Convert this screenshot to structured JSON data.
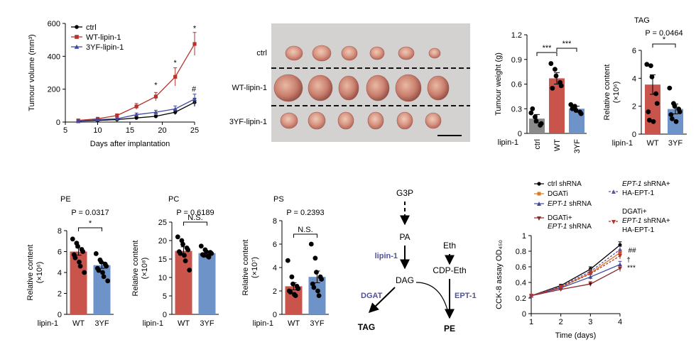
{
  "colors": {
    "ctrl": "#000000",
    "wt": "#b5332c",
    "yf": "#3e4aa0",
    "wt_bar": "#c8544c",
    "yf_bar": "#6d93c8",
    "lipin_text": "#5050a0",
    "orange": "#e07a1f",
    "maroon": "#8b2a2a",
    "purple": "#6a4fa0"
  },
  "chart_data": [
    {
      "id": "tumour-volume",
      "type": "line",
      "xlabel": "Days after implantation",
      "ylabel": "Tumour volume (mm³)",
      "xlim": [
        5,
        25
      ],
      "ylim": [
        0,
        600
      ],
      "xticks": [
        5,
        10,
        15,
        20,
        25
      ],
      "yticks": [
        0,
        200,
        400,
        600
      ],
      "x": [
        7,
        10,
        13,
        16,
        19,
        22,
        25
      ],
      "series": [
        {
          "name": "ctrl",
          "color": "#000000",
          "marker": "circle",
          "values": [
            5,
            10,
            15,
            25,
            35,
            60,
            120
          ],
          "err": [
            2,
            3,
            4,
            6,
            8,
            15,
            25
          ]
        },
        {
          "name": "WT-lipin-1",
          "color": "#b5332c",
          "marker": "square",
          "values": [
            10,
            20,
            40,
            95,
            155,
            275,
            475
          ],
          "err": [
            3,
            5,
            10,
            18,
            25,
            55,
            70
          ]
        },
        {
          "name": "3YF-lipin-1",
          "color": "#3e4aa0",
          "marker": "triangle",
          "values": [
            5,
            15,
            20,
            45,
            60,
            80,
            140
          ],
          "err": [
            2,
            4,
            6,
            10,
            12,
            18,
            30
          ]
        }
      ],
      "annotations": [
        {
          "x": 19,
          "label": "*"
        },
        {
          "x": 22,
          "label": "*"
        },
        {
          "x": 25,
          "label": "*"
        },
        {
          "x": 25,
          "label": "#"
        }
      ]
    },
    {
      "id": "tumour-weight",
      "type": "bar",
      "ylabel": "Tumour weight (g)",
      "group_label": "lipin-1",
      "categories": [
        "ctrl",
        "WT",
        "3YF"
      ],
      "values": [
        0.18,
        0.67,
        0.3
      ],
      "err": [
        0.05,
        0.07,
        0.03
      ],
      "ylim": [
        0,
        1.2
      ],
      "yticks": [
        0,
        0.3,
        0.6,
        0.9,
        1.2
      ],
      "points": [
        [
          0.25,
          0.2,
          0.15,
          0.1,
          0.12,
          0.3
        ],
        [
          0.85,
          0.78,
          0.7,
          0.62,
          0.58,
          0.55
        ],
        [
          0.35,
          0.33,
          0.28,
          0.26,
          0.24,
          0.3
        ]
      ],
      "significance": [
        {
          "from": 0,
          "to": 1,
          "label": "***"
        },
        {
          "from": 1,
          "to": 2,
          "label": "***"
        }
      ]
    },
    {
      "id": "tag",
      "type": "bar",
      "title": "TAG",
      "pvalue": "P = 0.0464",
      "ylabel": "Relative content",
      "yunit": "(×10⁶)",
      "group_label": "lipin-1",
      "categories": [
        "WT",
        "3YF"
      ],
      "values": [
        3.55,
        1.8
      ],
      "err": [
        0.7,
        0.35
      ],
      "ylim": [
        0,
        6
      ],
      "yticks": [
        0,
        2,
        4,
        6
      ],
      "points": [
        [
          5.0,
          4.9,
          4.1,
          2.9,
          2.2,
          1.6,
          1.0,
          0.9
        ],
        [
          3.3,
          2.2,
          2.0,
          1.8,
          1.6,
          1.4,
          1.1,
          0.9
        ]
      ],
      "significance": [
        {
          "from": 0,
          "to": 1,
          "label": "*"
        }
      ]
    },
    {
      "id": "pe",
      "type": "bar",
      "title": "PE",
      "pvalue": "P = 0.0317",
      "ylabel": "Relative content",
      "yunit": "(×10⁶)",
      "group_label": "lipin-1",
      "categories": [
        "WT",
        "3YF"
      ],
      "values": [
        6.0,
        4.7
      ],
      "err": [
        0.35,
        0.3
      ],
      "ylim": [
        0,
        8
      ],
      "yticks": [
        0,
        2,
        4,
        6,
        8
      ],
      "points": [
        [
          7.2,
          6.8,
          6.5,
          6.2,
          6.0,
          5.7,
          5.4,
          5.0,
          4.6,
          4.0
        ],
        [
          5.8,
          5.2,
          5.0,
          4.8,
          4.6,
          4.4,
          4.2,
          4.0,
          3.6,
          3.2
        ]
      ],
      "significance": [
        {
          "from": 0,
          "to": 1,
          "label": "*"
        }
      ]
    },
    {
      "id": "pc",
      "type": "bar",
      "title": "PC",
      "pvalue": "P = 0.6189",
      "ylabel": "Relative content",
      "yunit": "(×10⁸)",
      "group_label": "lipin-1",
      "categories": [
        "WT",
        "3YF"
      ],
      "values": [
        17.2,
        16.6
      ],
      "err": [
        1.1,
        0.5
      ],
      "ylim": [
        0,
        25
      ],
      "yticks": [
        0,
        5,
        10,
        15,
        20,
        25
      ],
      "points": [
        [
          21,
          20,
          19,
          18,
          17.5,
          17,
          16.5,
          16,
          14.5,
          12
        ],
        [
          18.5,
          17.5,
          17,
          16.8,
          16.5,
          16.2,
          16,
          15.8,
          15.5
        ]
      ],
      "significance": [
        {
          "from": 0,
          "to": 1,
          "label": "N.S."
        }
      ]
    },
    {
      "id": "ps",
      "type": "bar",
      "title": "PS",
      "pvalue": "P = 0.2393",
      "ylabel": "Relative content",
      "yunit": "(×10⁷)",
      "group_label": "lipin-1",
      "categories": [
        "WT",
        "3YF"
      ],
      "values": [
        2.4,
        3.2
      ],
      "err": [
        0.3,
        0.5
      ],
      "ylim": [
        0,
        8
      ],
      "yticks": [
        0,
        2,
        4,
        6,
        8
      ],
      "points": [
        [
          4.6,
          3.2,
          2.6,
          2.4,
          2.2,
          2.0,
          1.9,
          1.7,
          1.6
        ],
        [
          6.0,
          4.8,
          3.6,
          3.2,
          3.0,
          2.6,
          2.3,
          2.0,
          1.6
        ]
      ],
      "significance": [
        {
          "from": 0,
          "to": 1,
          "label": "N.S."
        }
      ]
    },
    {
      "id": "cck8",
      "type": "line",
      "xlabel": "Time (days)",
      "ylabel": "CCK-8 assay OD₄₅₀",
      "xlim": [
        1,
        4
      ],
      "ylim": [
        0,
        1
      ],
      "xticks": [
        1,
        2,
        3,
        4
      ],
      "yticks": [
        0,
        0.2,
        0.4,
        0.6,
        0.8,
        1.0
      ],
      "x": [
        1,
        2,
        3,
        4
      ],
      "series": [
        {
          "name": "ctrl shRNA",
          "color": "#000000",
          "marker": "circle",
          "dash": "",
          "values": [
            0.23,
            0.36,
            0.57,
            0.88
          ],
          "err": [
            0.01,
            0.015,
            0.03,
            0.04
          ]
        },
        {
          "name": "DGATi",
          "color": "#e07a1f",
          "marker": "square",
          "dash": "",
          "values": [
            0.23,
            0.34,
            0.52,
            0.78
          ],
          "err": [
            0.01,
            0.015,
            0.03,
            0.04
          ]
        },
        {
          "name": "EPT-1 shRNA",
          "color": "#3e4aa0",
          "marker": "triangle",
          "dash": "",
          "values": [
            0.23,
            0.33,
            0.47,
            0.63
          ],
          "err": [
            0.01,
            0.015,
            0.03,
            0.04
          ]
        },
        {
          "name": "DGATi+ EPT-1 shRNA",
          "color": "#8b2a2a",
          "marker": "tri-down",
          "dash": "",
          "values": [
            0.23,
            0.31,
            0.38,
            0.58
          ],
          "err": [
            0.01,
            0.015,
            0.03,
            0.04
          ]
        },
        {
          "name": "EPT-1 shRNA+ HA-EPT-1",
          "color": "#6a4fa0",
          "marker": "triangle",
          "dash": "3,2",
          "values": [
            0.23,
            0.35,
            0.54,
            0.82
          ],
          "err": [
            0.01,
            0.015,
            0.03,
            0.04
          ]
        },
        {
          "name": "DGATi+ EPT-1 shRNA+ HA-EPT-1",
          "color": "#b5332c",
          "marker": "tri-down",
          "dash": "3,2",
          "values": [
            0.23,
            0.34,
            0.51,
            0.74
          ],
          "err": [
            0.01,
            0.015,
            0.03,
            0.04
          ]
        }
      ],
      "annotations": [
        {
          "x": 3,
          "label": "*"
        },
        {
          "x": 4,
          "label": "##"
        },
        {
          "x": 4,
          "label": "†"
        },
        {
          "x": 4,
          "label": "***"
        }
      ]
    }
  ],
  "photo": {
    "rows": [
      "ctrl",
      "WT-lipin-1",
      "3YF-lipin-1"
    ]
  },
  "legend_texts": {
    "cck_ctrl": "ctrl shRNA",
    "cck_dgati": "DGATi",
    "cck_ept_a": "EPT-1",
    "cck_ept_b": " shRNA",
    "cck_combo1a": "DGATi+",
    "cck_combo1b": "EPT-1",
    "cck_combo1c": " shRNA",
    "cck_r1a": "EPT-1",
    "cck_r1b": " shRNA+",
    "cck_r1c": "HA-EPT-1",
    "cck_r2a": "DGATi+",
    "cck_r2b": "EPT-1",
    "cck_r2c": " shRNA+",
    "cck_r2d": "HA-EPT-1"
  },
  "diagram": {
    "g3p": "G3P",
    "pa": "PA",
    "dag": "DAG",
    "tag": "TAG",
    "pe": "PE",
    "eth": "Eth",
    "cdp_eth": "CDP-Eth",
    "lipin": "lipin-1",
    "dgat": "DGAT",
    "ept": "EPT-1"
  }
}
